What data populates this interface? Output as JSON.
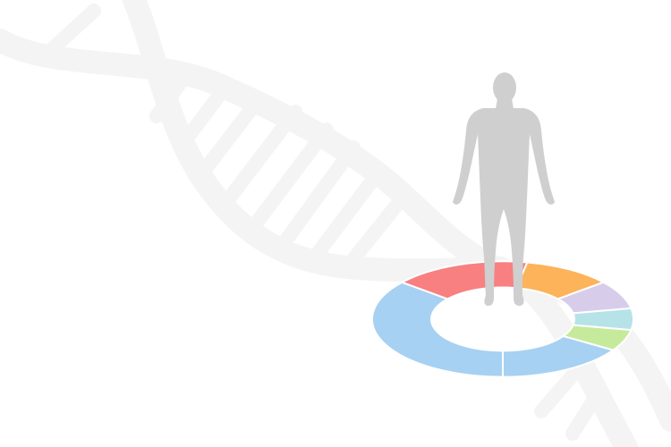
{
  "background": {
    "color": "#ffffff",
    "dna_helix_color": "#f4f4f4",
    "dna_icon": "dna-helix-icon"
  },
  "figure": {
    "icon": "human-figure-icon",
    "color": "#cfcfcf"
  },
  "ring": {
    "icon": "donut-ring-icon",
    "segments": [
      {
        "color": "#a6d1f2",
        "share": 0.36
      },
      {
        "color": "#f88080",
        "share": 0.17
      },
      {
        "color": "#fcb35a",
        "share": 0.11
      },
      {
        "color": "#d7cdeb",
        "share": 0.08
      },
      {
        "color": "#b5e3e8",
        "share": 0.06
      },
      {
        "color": "#c6ea9c",
        "share": 0.06
      },
      {
        "color": "#a6d1f2",
        "share": 0.16
      }
    ]
  }
}
